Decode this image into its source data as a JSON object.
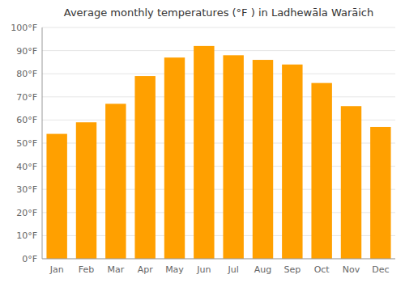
{
  "chart_data": {
    "type": "bar",
    "title": "Average monthly temperatures (°F ) in Ladhewāla Warāich",
    "categories": [
      "Jan",
      "Feb",
      "Mar",
      "Apr",
      "May",
      "Jun",
      "Jul",
      "Aug",
      "Sep",
      "Oct",
      "Nov",
      "Dec"
    ],
    "values": [
      54,
      59,
      67,
      79,
      87,
      92,
      88,
      86,
      84,
      76,
      66,
      57
    ],
    "color": "#FFA000",
    "ylim": [
      0,
      100
    ],
    "yticks": [
      {
        "value": 0,
        "label": "0°F"
      },
      {
        "value": 10,
        "label": "10°F"
      },
      {
        "value": 20,
        "label": "20°F"
      },
      {
        "value": 30,
        "label": "30°F"
      },
      {
        "value": 40,
        "label": "40°F"
      },
      {
        "value": 50,
        "label": "50°F"
      },
      {
        "value": 60,
        "label": "60°F"
      },
      {
        "value": 70,
        "label": "70°F"
      },
      {
        "value": 80,
        "label": "80°F"
      },
      {
        "value": 90,
        "label": "90°F"
      },
      {
        "value": 100,
        "label": "100°F"
      }
    ],
    "grid": true
  }
}
